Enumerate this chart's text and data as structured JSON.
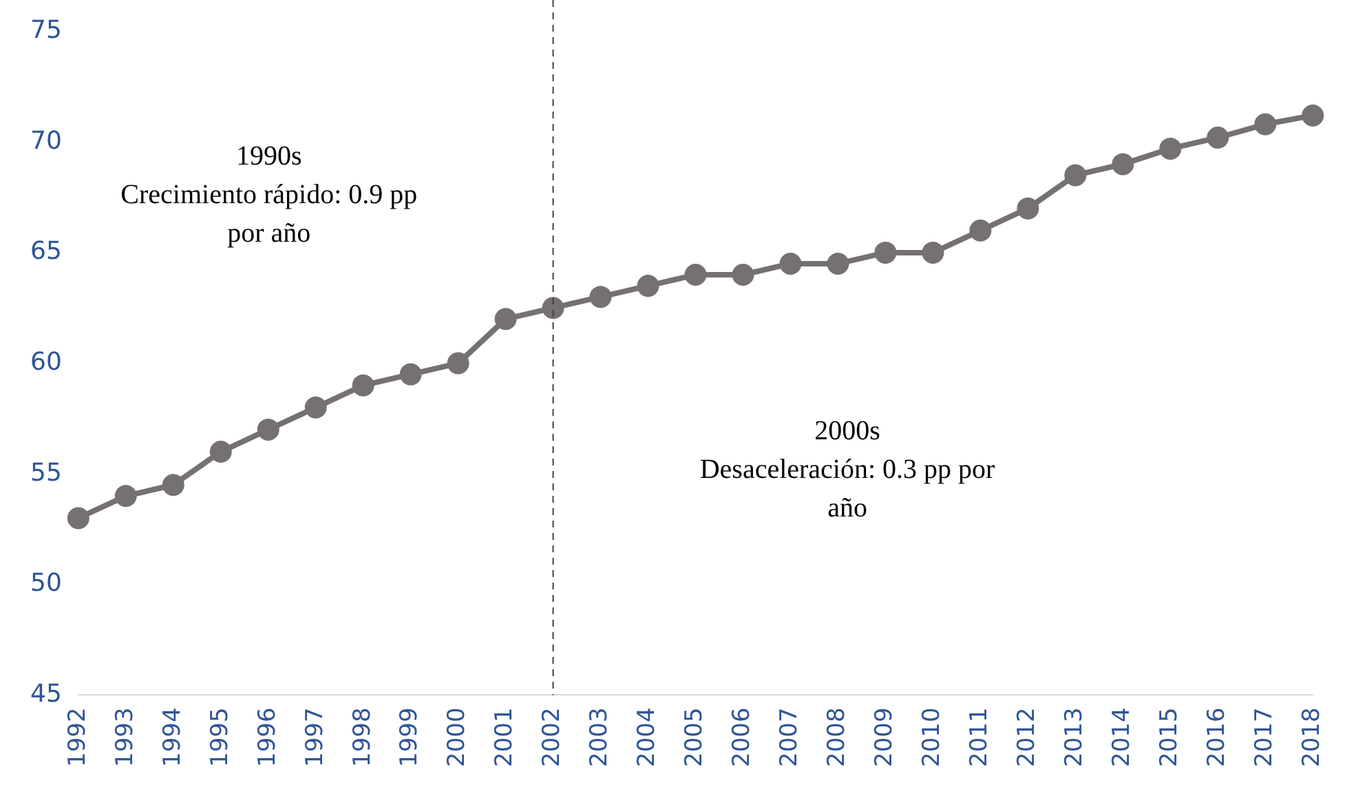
{
  "chart_data": {
    "type": "line",
    "categories": [
      "1992",
      "1993",
      "1994",
      "1995",
      "1996",
      "1997",
      "1998",
      "1999",
      "2000",
      "2001",
      "2002",
      "2003",
      "2004",
      "2005",
      "2006",
      "2007",
      "2008",
      "2009",
      "2010",
      "2011",
      "2012",
      "2013",
      "2014",
      "2015",
      "2016",
      "2017",
      "2018"
    ],
    "series": [
      {
        "color": "#767171",
        "values": [
          53,
          54,
          54.5,
          56,
          57,
          58,
          59,
          59.5,
          60,
          62,
          62.5,
          63,
          63.5,
          64,
          64,
          64.5,
          64.5,
          65,
          65,
          66,
          67,
          68.5,
          69,
          69.7,
          70.2,
          70.8,
          71.2
        ]
      }
    ],
    "ylim": [
      45,
      75
    ],
    "yticks": [
      45,
      50,
      55,
      60,
      65,
      70,
      75
    ],
    "grid": false,
    "legend": false,
    "marker": "circle",
    "line_style": "solid",
    "ref_lines": [
      {
        "axis": "x",
        "value": "2002",
        "color": "#404040",
        "line_style": "dashed"
      }
    ],
    "annotations": [
      "1990s\nCrecimiento rápido: 0.9 pp\npor año",
      "2000s\nDesaceleración: 0.3 pp por\naño"
    ]
  }
}
